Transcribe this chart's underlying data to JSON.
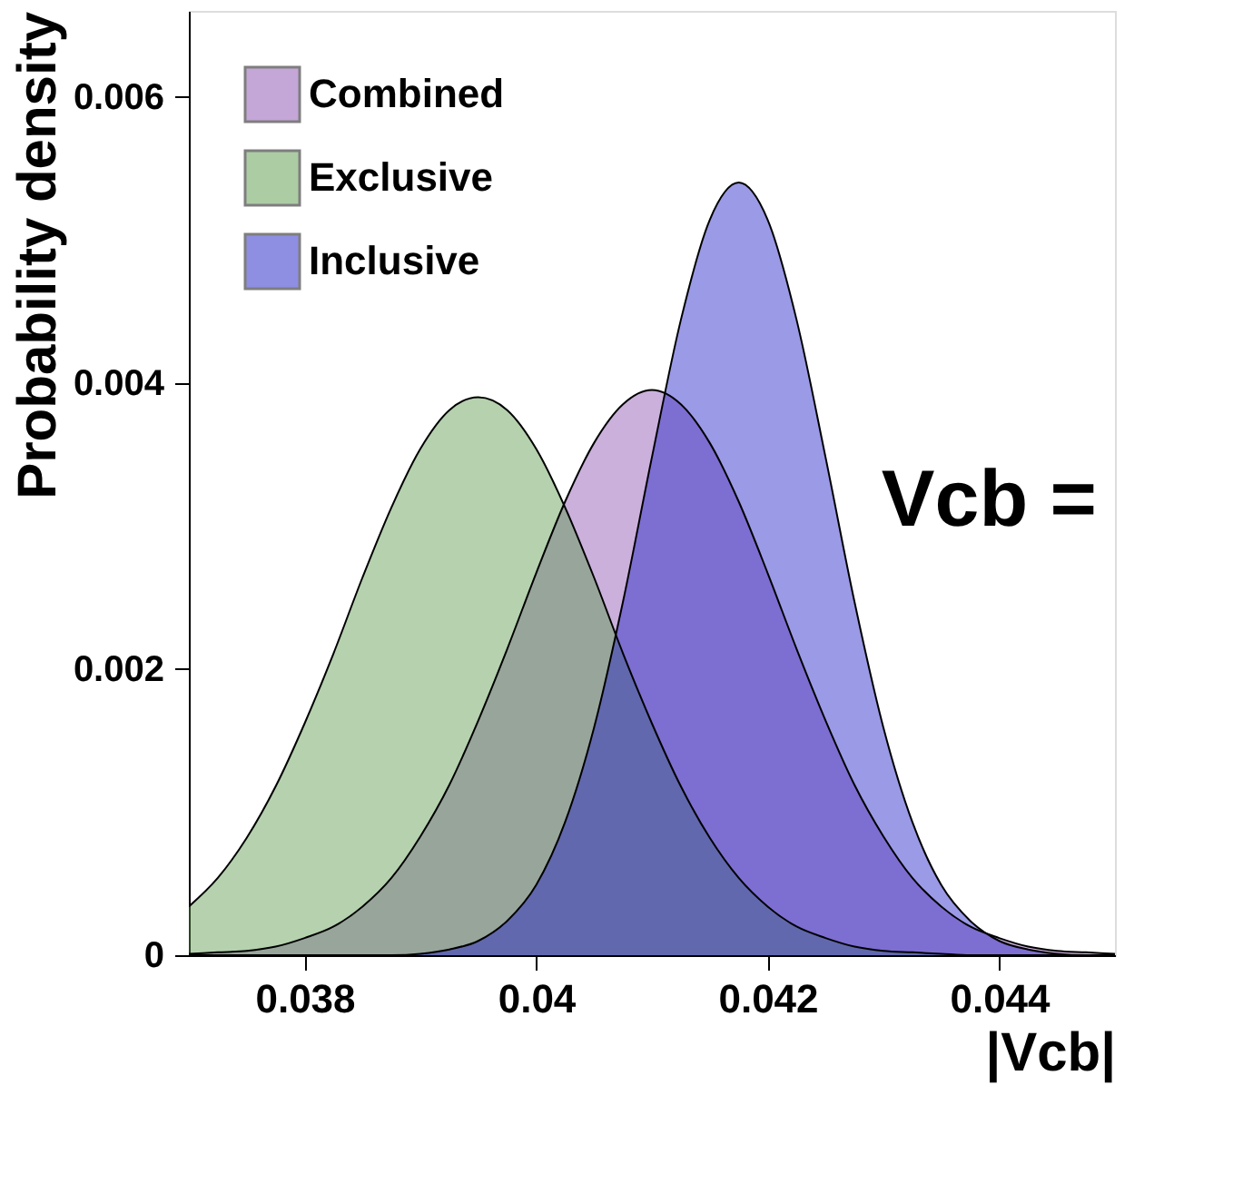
{
  "chart_data": {
    "type": "area",
    "xlabel": "|Vcb|",
    "ylabel": "Probability density",
    "x": [
      0.037,
      0.03725,
      0.0375,
      0.03775,
      0.038,
      0.03825,
      0.0385,
      0.03875,
      0.039,
      0.03925,
      0.0395,
      0.03975,
      0.04,
      0.04025,
      0.0405,
      0.04075,
      0.041,
      0.04125,
      0.0415,
      0.04175,
      0.042,
      0.04225,
      0.0425,
      0.04275,
      0.043,
      0.04325,
      0.0435,
      0.04375,
      0.044,
      0.04425,
      0.0445,
      0.04475,
      0.045
    ],
    "series": [
      {
        "name": "Combined",
        "color": "#8a4fb0",
        "values": [
          1e-05,
          2e-05,
          3e-05,
          6e-05,
          0.00012,
          0.0002,
          0.00034,
          0.00054,
          0.00083,
          0.00119,
          0.00164,
          0.00214,
          0.00267,
          0.00317,
          0.00358,
          0.00385,
          0.00395,
          0.00385,
          0.00358,
          0.00317,
          0.00267,
          0.00214,
          0.00164,
          0.00119,
          0.00083,
          0.00054,
          0.00034,
          0.0002,
          0.00012,
          6e-05,
          3e-05,
          2e-05,
          1e-05
        ]
      },
      {
        "name": "Exclusive",
        "color": "#5c9a4c",
        "values": [
          0.00034,
          0.00054,
          0.00082,
          0.00118,
          0.00162,
          0.00211,
          0.00264,
          0.00313,
          0.00354,
          0.00381,
          0.0039,
          0.00381,
          0.00354,
          0.00313,
          0.00264,
          0.00211,
          0.00162,
          0.00118,
          0.00082,
          0.00054,
          0.00034,
          0.0002,
          0.00012,
          6e-05,
          3e-05,
          2e-05,
          1e-05,
          0,
          0,
          0,
          0,
          0,
          0
        ]
      },
      {
        "name": "Inclusive",
        "color": "#1f1fc8",
        "values": [
          0,
          0,
          0,
          0,
          0,
          0,
          0,
          0,
          1e-05,
          4e-05,
          0.0001,
          0.00024,
          0.00049,
          0.00093,
          0.00159,
          0.00247,
          0.00348,
          0.00444,
          0.00514,
          0.0054,
          0.00514,
          0.00444,
          0.00348,
          0.00247,
          0.00159,
          0.00093,
          0.00049,
          0.00024,
          0.0001,
          4e-05,
          1e-05,
          0,
          0
        ]
      }
    ],
    "xlim": [
      0.037,
      0.045
    ],
    "xticks": [
      0.038,
      0.04,
      0.042,
      0.044
    ],
    "ylim": [
      0,
      0.0066
    ],
    "yticks": [
      0,
      0.002,
      0.004,
      0.006
    ],
    "grid": false,
    "legend": "top left",
    "annotations": [
      "Vcb ="
    ]
  }
}
